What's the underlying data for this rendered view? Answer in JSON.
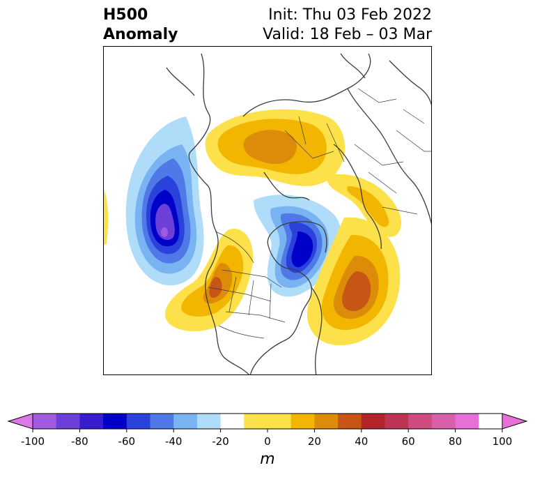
{
  "header": {
    "title_line1": "H500",
    "title_line2": "Anomaly",
    "init": "Init: Thu 03 Feb 2022",
    "valid": "Valid: 18 Feb – 03 Mar"
  },
  "colorbar": {
    "units": "m",
    "min": -100,
    "max": 100,
    "ticks": [
      -100,
      -80,
      -60,
      -40,
      -20,
      0,
      20,
      40,
      60,
      80,
      100
    ],
    "tick_labels": [
      "-100",
      "-80",
      "-60",
      "-40",
      "-20",
      "0",
      "20",
      "40",
      "60",
      "80",
      "100"
    ],
    "levels": [
      -90,
      -80,
      -70,
      -60,
      -50,
      -40,
      -30,
      -20,
      -10,
      10,
      20,
      30,
      40,
      50,
      60,
      70,
      80,
      90
    ],
    "under_color": "#dd78ea",
    "over_color": "#e96fd8",
    "colors": [
      "#a05be0",
      "#6c3fd9",
      "#3a1ccf",
      "#0000c8",
      "#2b41dc",
      "#4f79e6",
      "#79b3f2",
      "#afdcf9",
      "#ffffff",
      "#fde14b",
      "#f3b600",
      "#dd8c0a",
      "#c65516",
      "#b3252a",
      "#be3455",
      "#cd4b7f",
      "#d95fa8",
      "#e96fd8"
    ]
  },
  "map": {
    "projection": "north-polar-stereographic",
    "features": [
      "coastlines",
      "country-borders",
      "us-state-borders"
    ],
    "anomaly_centers": [
      {
        "region": "North Pacific / Gulf of Alaska",
        "value": -80
      },
      {
        "region": "Hudson Bay / Eastern Canada",
        "value": -60
      },
      {
        "region": "Western North America",
        "value": 50
      },
      {
        "region": "Western North Atlantic",
        "value": 50
      },
      {
        "region": "Northern Siberia",
        "value": 40
      },
      {
        "region": "Eastern Europe / Ural",
        "value": 20
      }
    ]
  }
}
